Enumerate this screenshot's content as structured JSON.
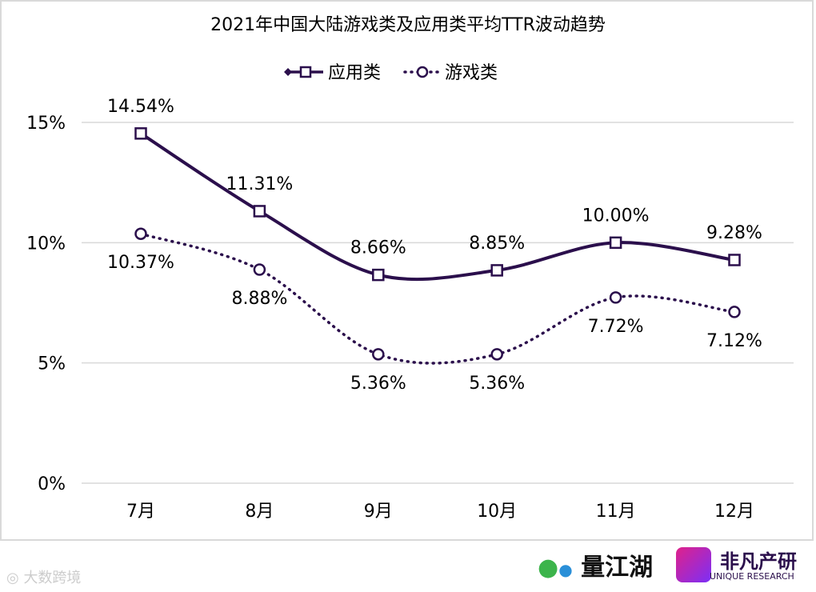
{
  "chart_data": {
    "type": "line",
    "title": "2021年中国大陆游戏类及应用类平均TTR波动趋势",
    "categories": [
      "7月",
      "8月",
      "9月",
      "10月",
      "11月",
      "12月"
    ],
    "series": [
      {
        "name": "应用类",
        "values": [
          14.54,
          11.31,
          8.66,
          8.85,
          10.0,
          9.28
        ],
        "labels": [
          "14.54%",
          "11.31%",
          "8.66%",
          "8.85%",
          "10.00%",
          "9.28%"
        ],
        "marker": "square",
        "line": "solid",
        "color": "#2b0f4c"
      },
      {
        "name": "游戏类",
        "values": [
          10.37,
          8.88,
          5.36,
          5.36,
          7.72,
          7.12
        ],
        "labels": [
          "10.37%",
          "8.88%",
          "5.36%",
          "5.36%",
          "7.72%",
          "7.12%"
        ],
        "marker": "circle",
        "line": "dotted",
        "color": "#2b0f4c"
      }
    ],
    "yticks": [
      "0%",
      "5%",
      "10%",
      "15%"
    ],
    "ylim": [
      0,
      15
    ],
    "grid": true,
    "legend": "top-center",
    "smooth": true
  },
  "logos": {
    "left": "量江湖",
    "right": "非凡产研",
    "right_sub": "UNIQUE RESEARCH",
    "watermark": "大数跨境"
  }
}
